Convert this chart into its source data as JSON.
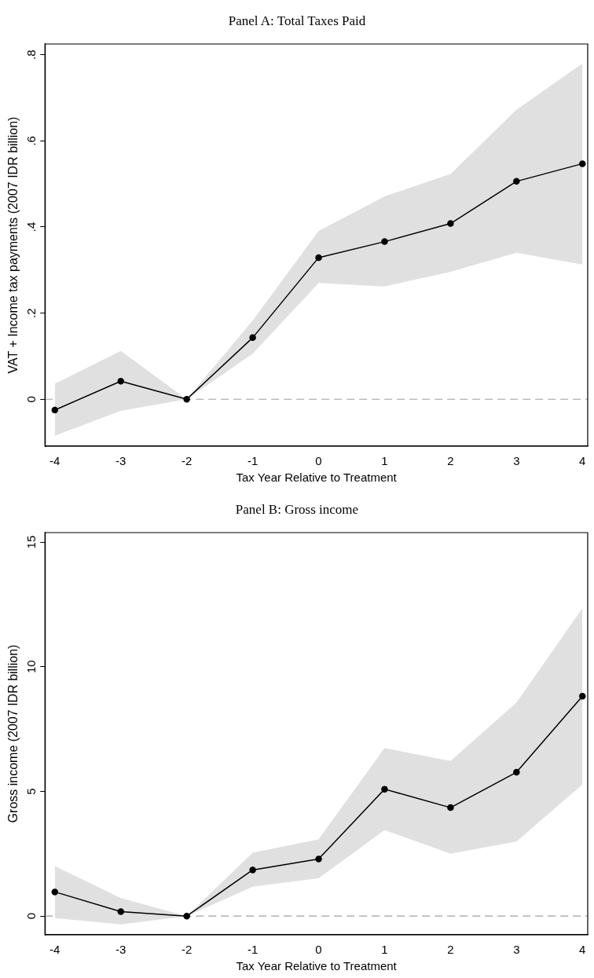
{
  "chart_data": [
    {
      "type": "line",
      "title": "Panel A: Total Taxes Paid",
      "xlabel": "Tax Year Relative to Treatment",
      "ylabel": "VAT + Income tax payments (2007 IDR billion)",
      "x": [
        -4,
        -3,
        -2,
        -1,
        0,
        1,
        2,
        3,
        4
      ],
      "xlim": [
        -4.15,
        4.08
      ],
      "xticks": [
        -4,
        -3,
        -2,
        -1,
        0,
        1,
        2,
        3,
        4
      ],
      "ylim": [
        -0.109,
        0.825
      ],
      "yticks": [
        {
          "value": 0,
          "label": "0"
        },
        {
          "value": 0.2,
          "label": ".2"
        },
        {
          "value": 0.4,
          "label": ".4"
        },
        {
          "value": 0.6,
          "label": ".6"
        },
        {
          "value": 0.8,
          "label": ".8"
        }
      ],
      "grid": false,
      "marker": "circle",
      "line_style": "solid",
      "series": [
        {
          "color": "#000000",
          "values": [
            -0.025,
            0.042,
            0,
            0.143,
            0.329,
            0.366,
            0.408,
            0.506,
            0.547
          ],
          "lower": [
            -0.085,
            -0.027,
            0,
            0.106,
            0.27,
            0.262,
            0.296,
            0.34,
            0.313
          ],
          "upper": [
            0.036,
            0.112,
            0,
            0.183,
            0.391,
            0.471,
            0.523,
            0.672,
            0.78
          ]
        }
      ],
      "ref_lines": [
        {
          "axis": "y",
          "value": 0,
          "color": "#a0a0a0",
          "line_style": "dashed"
        }
      ]
    },
    {
      "type": "line",
      "title": "Panel B: Gross income",
      "xlabel": "Tax Year Relative to Treatment",
      "ylabel": "Gross income (2007 IDR billion)",
      "x": [
        -4,
        -3,
        -2,
        -1,
        0,
        1,
        2,
        3,
        4
      ],
      "xlim": [
        -4.15,
        4.08
      ],
      "xticks": [
        -4,
        -3,
        -2,
        -1,
        0,
        1,
        2,
        3,
        4
      ],
      "ylim": [
        -0.75,
        15.38
      ],
      "yticks": [
        0,
        5,
        10,
        15
      ],
      "grid": false,
      "marker": "circle",
      "line_style": "solid",
      "series": [
        {
          "color": "#000000",
          "values": [
            0.97,
            0.18,
            0,
            1.85,
            2.29,
            5.09,
            4.35,
            5.77,
            8.82
          ],
          "lower": [
            -0.08,
            -0.33,
            0,
            1.18,
            1.52,
            3.45,
            2.5,
            2.99,
            5.28
          ],
          "upper": [
            2.01,
            0.72,
            0,
            2.54,
            3.08,
            6.74,
            6.22,
            8.57,
            12.35
          ]
        }
      ],
      "ref_lines": [
        {
          "axis": "y",
          "value": 0,
          "color": "#a0a0a0",
          "line_style": "dashed"
        }
      ]
    }
  ]
}
